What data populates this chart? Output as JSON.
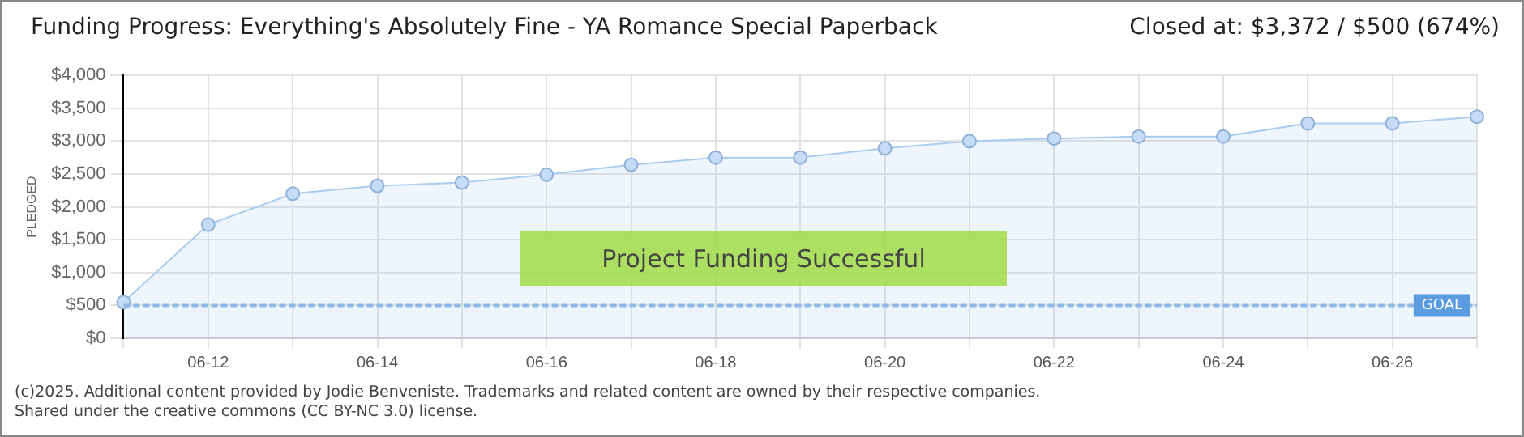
{
  "chart_data": {
    "type": "area",
    "title": "Funding Progress: Everything's Absolutely Fine - YA Romance Special Paperback",
    "ylabel": "PLEDGED",
    "categories": [
      null,
      "06-12",
      null,
      "06-14",
      null,
      "06-16",
      null,
      "06-18",
      null,
      "06-20",
      null,
      "06-22",
      null,
      "06-24",
      null,
      "06-26",
      null
    ],
    "series": [
      {
        "color": "#aaccf0",
        "values": [
          550,
          1730,
          2200,
          2320,
          2370,
          2490,
          2640,
          2750,
          2750,
          2890,
          3000,
          3040,
          3070,
          3070,
          3270,
          3270,
          3372
        ]
      }
    ],
    "ylim": [
      0,
      4000
    ],
    "yticks": [
      {
        "value": 0,
        "label": "$0"
      },
      {
        "value": 500,
        "label": "$500"
      },
      {
        "value": 1000,
        "label": "$1,000"
      },
      {
        "value": 1500,
        "label": "$1,500"
      },
      {
        "value": 2000,
        "label": "$2,000"
      },
      {
        "value": 2500,
        "label": "$2,500"
      },
      {
        "value": 3000,
        "label": "$3,000"
      },
      {
        "value": 3500,
        "label": "$3,500"
      },
      {
        "value": 4000,
        "label": "$4,000"
      }
    ],
    "ref_lines": [
      {
        "axis": "y",
        "value": 500,
        "label": "GOAL",
        "color": "#8fb8e6",
        "line_style": "dashed"
      }
    ],
    "annotations": [
      "Closed at: $3,372 / $500 (674%)",
      "Project Funding Successful",
      "(c)2025. Additional content provided by Jodie Benveniste. Trademarks and related content are owned by their respective companies.",
      "Shared under the creative commons (CC BY-NC 3.0) license."
    ],
    "grid": true,
    "marker": "circle",
    "legend": false
  }
}
